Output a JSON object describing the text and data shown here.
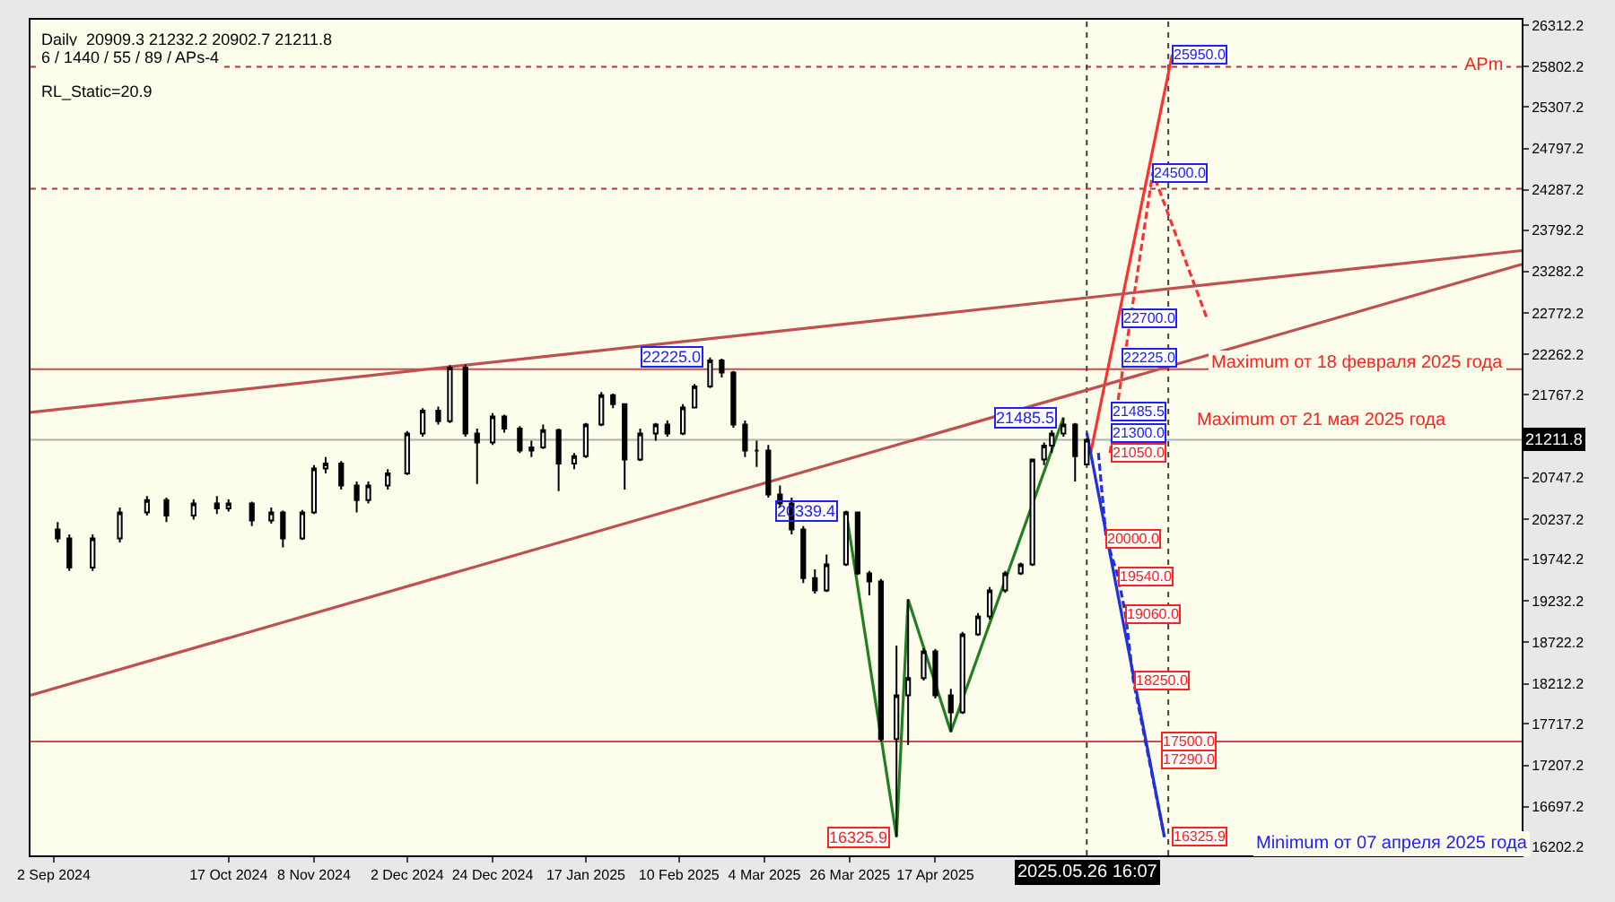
{
  "chart_data": {
    "type": "candlestick",
    "x": [
      "2024-09-03",
      "2024-09-06",
      "2024-09-12",
      "2024-09-19",
      "2024-09-26",
      "2024-10-01",
      "2024-10-08",
      "2024-10-14",
      "2024-10-17",
      "2024-10-23",
      "2024-10-28",
      "2024-10-31",
      "2024-11-05",
      "2024-11-08",
      "2024-11-11",
      "2024-11-15",
      "2024-11-19",
      "2024-11-22",
      "2024-11-27",
      "2024-12-02",
      "2024-12-06",
      "2024-12-10",
      "2024-12-13",
      "2024-12-17",
      "2024-12-20",
      "2024-12-24",
      "2024-12-27",
      "2024-12-31",
      "2025-01-03",
      "2025-01-06",
      "2025-01-10",
      "2025-01-14",
      "2025-01-17",
      "2025-01-21",
      "2025-01-24",
      "2025-01-27",
      "2025-01-31",
      "2025-02-04",
      "2025-02-07",
      "2025-02-11",
      "2025-02-14",
      "2025-02-18",
      "2025-02-21",
      "2025-02-24",
      "2025-02-27",
      "2025-03-02",
      "2025-03-05",
      "2025-03-08",
      "2025-03-11",
      "2025-03-14",
      "2025-03-17",
      "2025-03-20",
      "2025-03-25",
      "2025-03-28",
      "2025-03-31",
      "2025-04-03",
      "2025-04-07",
      "2025-04-10",
      "2025-04-14",
      "2025-04-17",
      "2025-04-21",
      "2025-04-24",
      "2025-04-28",
      "2025-05-01",
      "2025-05-05",
      "2025-05-09",
      "2025-05-12",
      "2025-05-15",
      "2025-05-17",
      "2025-05-20",
      "2025-05-23",
      "2025-05-26"
    ],
    "ohlc": [
      [
        20110,
        20200,
        19950,
        20000
      ],
      [
        20000,
        20050,
        19600,
        19640
      ],
      [
        19640,
        20050,
        19600,
        20000
      ],
      [
        20000,
        20380,
        19950,
        20320
      ],
      [
        20320,
        20520,
        20280,
        20470
      ],
      [
        20470,
        20500,
        20200,
        20280
      ],
      [
        20280,
        20480,
        20230,
        20430
      ],
      [
        20430,
        20520,
        20300,
        20370
      ],
      [
        20370,
        20480,
        20330,
        20430
      ],
      [
        20430,
        20450,
        20150,
        20220
      ],
      [
        20220,
        20380,
        20180,
        20320
      ],
      [
        20320,
        20340,
        19890,
        20000
      ],
      [
        20000,
        20350,
        19980,
        20320
      ],
      [
        20320,
        20900,
        20300,
        20860
      ],
      [
        20860,
        21000,
        20800,
        20920
      ],
      [
        20920,
        20950,
        20600,
        20650
      ],
      [
        20650,
        20700,
        20320,
        20470
      ],
      [
        20470,
        20700,
        20430,
        20650
      ],
      [
        20650,
        20850,
        20600,
        20800
      ],
      [
        20800,
        21320,
        20780,
        21290
      ],
      [
        21290,
        21600,
        21250,
        21570
      ],
      [
        21570,
        21620,
        21400,
        21440
      ],
      [
        21440,
        22130,
        21420,
        22100
      ],
      [
        22100,
        22140,
        21250,
        21290
      ],
      [
        21290,
        21350,
        20670,
        21180
      ],
      [
        21180,
        21540,
        21150,
        21500
      ],
      [
        21500,
        21520,
        21300,
        21350
      ],
      [
        21350,
        21380,
        21050,
        21080
      ],
      [
        21080,
        21200,
        21000,
        21120
      ],
      [
        21120,
        21400,
        21100,
        21330
      ],
      [
        21330,
        21350,
        20580,
        20920
      ],
      [
        20920,
        21050,
        20850,
        21010
      ],
      [
        21010,
        21420,
        20990,
        21400
      ],
      [
        21400,
        21800,
        21380,
        21760
      ],
      [
        21760,
        21780,
        21600,
        21650
      ],
      [
        21650,
        21650,
        20600,
        20970
      ],
      [
        20970,
        21350,
        20950,
        21290
      ],
      [
        21290,
        21420,
        21200,
        21400
      ],
      [
        21400,
        21450,
        21250,
        21290
      ],
      [
        21290,
        21650,
        21270,
        21610
      ],
      [
        21610,
        21900,
        21600,
        21870
      ],
      [
        21870,
        22225,
        21850,
        22190
      ],
      [
        22190,
        22210,
        21980,
        22040
      ],
      [
        22040,
        22060,
        21360,
        21400
      ],
      [
        21400,
        21450,
        21000,
        21080
      ],
      [
        21080,
        21200,
        20880,
        21080
      ],
      [
        21080,
        21150,
        20500,
        20540
      ],
      [
        20540,
        20650,
        20380,
        20430
      ],
      [
        20430,
        20500,
        20050,
        20110
      ],
      [
        20110,
        20150,
        19450,
        19510
      ],
      [
        19510,
        19620,
        19320,
        19360
      ],
      [
        19360,
        19800,
        19340,
        19680
      ],
      [
        19680,
        20339.4,
        19660,
        20320
      ],
      [
        20320,
        20330,
        19550,
        19570
      ],
      [
        19570,
        19600,
        19300,
        19470
      ],
      [
        19470,
        19500,
        17500,
        17530
      ],
      [
        17530,
        18680,
        16325.9,
        18070
      ],
      [
        18070,
        19250,
        17460,
        18280
      ],
      [
        18280,
        18650,
        18250,
        18610
      ],
      [
        18610,
        18640,
        18030,
        18070
      ],
      [
        18070,
        18150,
        17620,
        17860
      ],
      [
        17860,
        18850,
        17840,
        18820
      ],
      [
        18820,
        19080,
        18800,
        19040
      ],
      [
        19040,
        19400,
        19000,
        19360
      ],
      [
        19360,
        19600,
        19330,
        19570
      ],
      [
        19570,
        19700,
        19550,
        19680
      ],
      [
        19680,
        20980,
        19660,
        20970
      ],
      [
        20970,
        21180,
        20900,
        21140
      ],
      [
        21140,
        21330,
        21050,
        21290
      ],
      [
        21290,
        21485.5,
        21250,
        21400
      ],
      [
        21400,
        21420,
        20700,
        21010
      ],
      [
        20909.3,
        21232.2,
        20902.7,
        21211.8
      ]
    ],
    "series": [
      {
        "type": "line",
        "color": "#ff3030",
        "x": [
          "2025-05-27",
          "2025-06-17"
        ],
        "values": [
          21050,
          25950
        ]
      },
      {
        "type": "line",
        "color": "#ff3030",
        "line_style": "dashed",
        "x": [
          "2025-06-01",
          "2025-06-12",
          "2025-06-26"
        ],
        "values": [
          21050,
          24500,
          22700
        ]
      },
      {
        "type": "line",
        "color": "#2030e0",
        "x": [
          "2025-05-26",
          "2025-06-15"
        ],
        "values": [
          21300,
          16325.9
        ]
      },
      {
        "type": "line",
        "color": "#2030e0",
        "line_style": "dashed",
        "x": [
          "2025-05-29",
          "2025-05-31",
          "2025-06-03",
          "2025-06-05",
          "2025-06-07",
          "2025-06-15"
        ],
        "values": [
          21050,
          20000,
          19540,
          19060,
          18250,
          16325.9
        ]
      },
      {
        "type": "line",
        "color": "#208020",
        "x": [
          "2025-03-25",
          "2025-04-07",
          "2025-04-10",
          "2025-04-21",
          "2025-05-20"
        ],
        "values": [
          20339.4,
          16325.9,
          19250,
          17620,
          21485.5
        ]
      },
      {
        "type": "line",
        "color": "#c05050",
        "x": [
          "2024-08-27",
          "2025-09-15"
        ],
        "values": [
          21550,
          23540
        ]
      },
      {
        "type": "line",
        "color": "#c05050",
        "x": [
          "2024-08-27",
          "2025-09-15"
        ],
        "values": [
          18070,
          23370
        ]
      }
    ],
    "ref_lines": [
      {
        "axis": "y",
        "value": 22080,
        "color": "#c05050"
      },
      {
        "axis": "y",
        "value": 17500,
        "color": "#c05050"
      },
      {
        "axis": "y",
        "value": 24300,
        "color": "#c03030",
        "line_style": "dotted"
      },
      {
        "axis": "y",
        "value": 25800,
        "color": "#c03030",
        "line_style": "dotted"
      },
      {
        "axis": "y",
        "value": 21211.8,
        "label": "21211.8",
        "color": "#b0b0b0"
      },
      {
        "axis": "x",
        "value": "2025-05-26",
        "color": "#404040",
        "line_style": "dotted"
      },
      {
        "axis": "x",
        "value": "2025-06-16",
        "color": "#404040",
        "line_style": "dotted"
      }
    ],
    "annotations": [
      "Daily  20909.3 21232.2 20902.7 21211.8",
      "6 / 1440 / 55 / 89 / APs-4",
      "RL_Static=20.9",
      "APm",
      "2025.05.26 16:07",
      "Maximum от 18 февраля 2025 года",
      "Maximum от 21 мая 2025 года",
      "Minimum от 07 апреля 2025 года",
      {
        "text": "22225.0",
        "x": "2025-02-18",
        "y": 22225
      },
      {
        "text": "21485.5",
        "x": "2025-05-20",
        "y": 21485.5
      },
      {
        "text": "20339.4",
        "x": "2025-03-25",
        "y": 20339.4
      },
      {
        "text": "16325.9",
        "x": "2025-04-07",
        "y": 16325.9
      },
      {
        "text": "25950.0",
        "x": "2025-06-17",
        "y": 25950
      },
      {
        "text": "24500.0",
        "x": "2025-06-12",
        "y": 24500
      },
      {
        "text": "22700.0",
        "x": "2025-06-04",
        "y": 22700
      },
      {
        "text": "22225.0",
        "x": "2025-06-04",
        "y": 22225
      },
      {
        "text": "21485.5",
        "x": "2025-06-01",
        "y": 21485.5
      },
      {
        "text": "21300.0",
        "x": "2025-06-01",
        "y": 21300
      },
      {
        "text": "21050.0",
        "x": "2025-06-01",
        "y": 21050
      },
      {
        "text": "20000.0",
        "x": "2025-05-31",
        "y": 20000
      },
      {
        "text": "19540.0",
        "x": "2025-06-03",
        "y": 19540
      },
      {
        "text": "19060.0",
        "x": "2025-06-05",
        "y": 19060
      },
      {
        "text": "18250.0",
        "x": "2025-06-07",
        "y": 18250
      },
      {
        "text": "17500.0",
        "x": "2025-06-14",
        "y": 17500
      },
      {
        "text": "17290.0",
        "x": "2025-06-14",
        "y": 17290
      },
      {
        "text": "16325.9",
        "x": "2025-06-17",
        "y": 16325.9
      }
    ],
    "xlim": [
      "2024-08-27",
      "2025-09-15"
    ],
    "xticks": [
      {
        "value": "2024-09-02",
        "label": "2 Sep 2024"
      },
      {
        "value": "2024-10-17",
        "label": "17 Oct 2024"
      },
      {
        "value": "2024-11-08",
        "label": "8 Nov 2024"
      },
      {
        "value": "2024-12-02",
        "label": "2 Dec 2024"
      },
      {
        "value": "2024-12-24",
        "label": "24 Dec 2024"
      },
      {
        "value": "2025-01-17",
        "label": "17 Jan 2025"
      },
      {
        "value": "2025-02-10",
        "label": "10 Feb 2025"
      },
      {
        "value": "2025-03-04",
        "label": "4 Mar 2025"
      },
      {
        "value": "2025-03-26",
        "label": "26 Mar 2025"
      },
      {
        "value": "2025-04-17",
        "label": "17 Apr 2025"
      }
    ],
    "ylim": [
      16100,
      26380
    ],
    "yticks": [
      16202.2,
      16697.2,
      17207.2,
      17717.2,
      18212.2,
      18722.2,
      19232.2,
      19742.2,
      20237.2,
      20747.2,
      21767.2,
      22262.2,
      22772.2,
      23282.2,
      23792.2,
      24287.2,
      24797.2,
      25307.2,
      25802.2,
      26312.2
    ],
    "grid": false
  }
}
